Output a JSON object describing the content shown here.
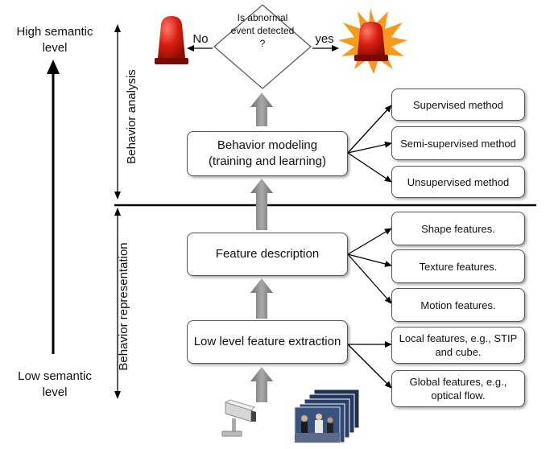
{
  "left_axis": {
    "top_label": "High semantic level",
    "bottom_label": "Low semantic level"
  },
  "sections": {
    "analysis": "Behavior analysis",
    "representation": "Behavior representation"
  },
  "decision": {
    "question": "Is abnormal event detected ?",
    "no_label": "No",
    "yes_label": "yes"
  },
  "pipeline": {
    "modeling_line1": "Behavior modeling",
    "modeling_line2": "(training and learning)",
    "description": "Feature description",
    "extraction": "Low level feature extraction"
  },
  "methods": [
    "Supervised method",
    "Semi-supervised method",
    "Unsupervised method"
  ],
  "features": [
    "Shape features.",
    "Texture features.",
    "Motion  features."
  ],
  "low_level": [
    {
      "line1": "Local features, e.g., STIP",
      "line2": "and cube."
    },
    {
      "line1": "Global features, e.g.,",
      "line2": "optical flow."
    }
  ],
  "inputs": [
    "camera-icon",
    "video-frames-icon"
  ],
  "colors": {
    "alarm_red": "#d81e10",
    "flash_orange": "#f59a1c",
    "gray_arrow": "#8c8c8c",
    "line": "#000000"
  }
}
